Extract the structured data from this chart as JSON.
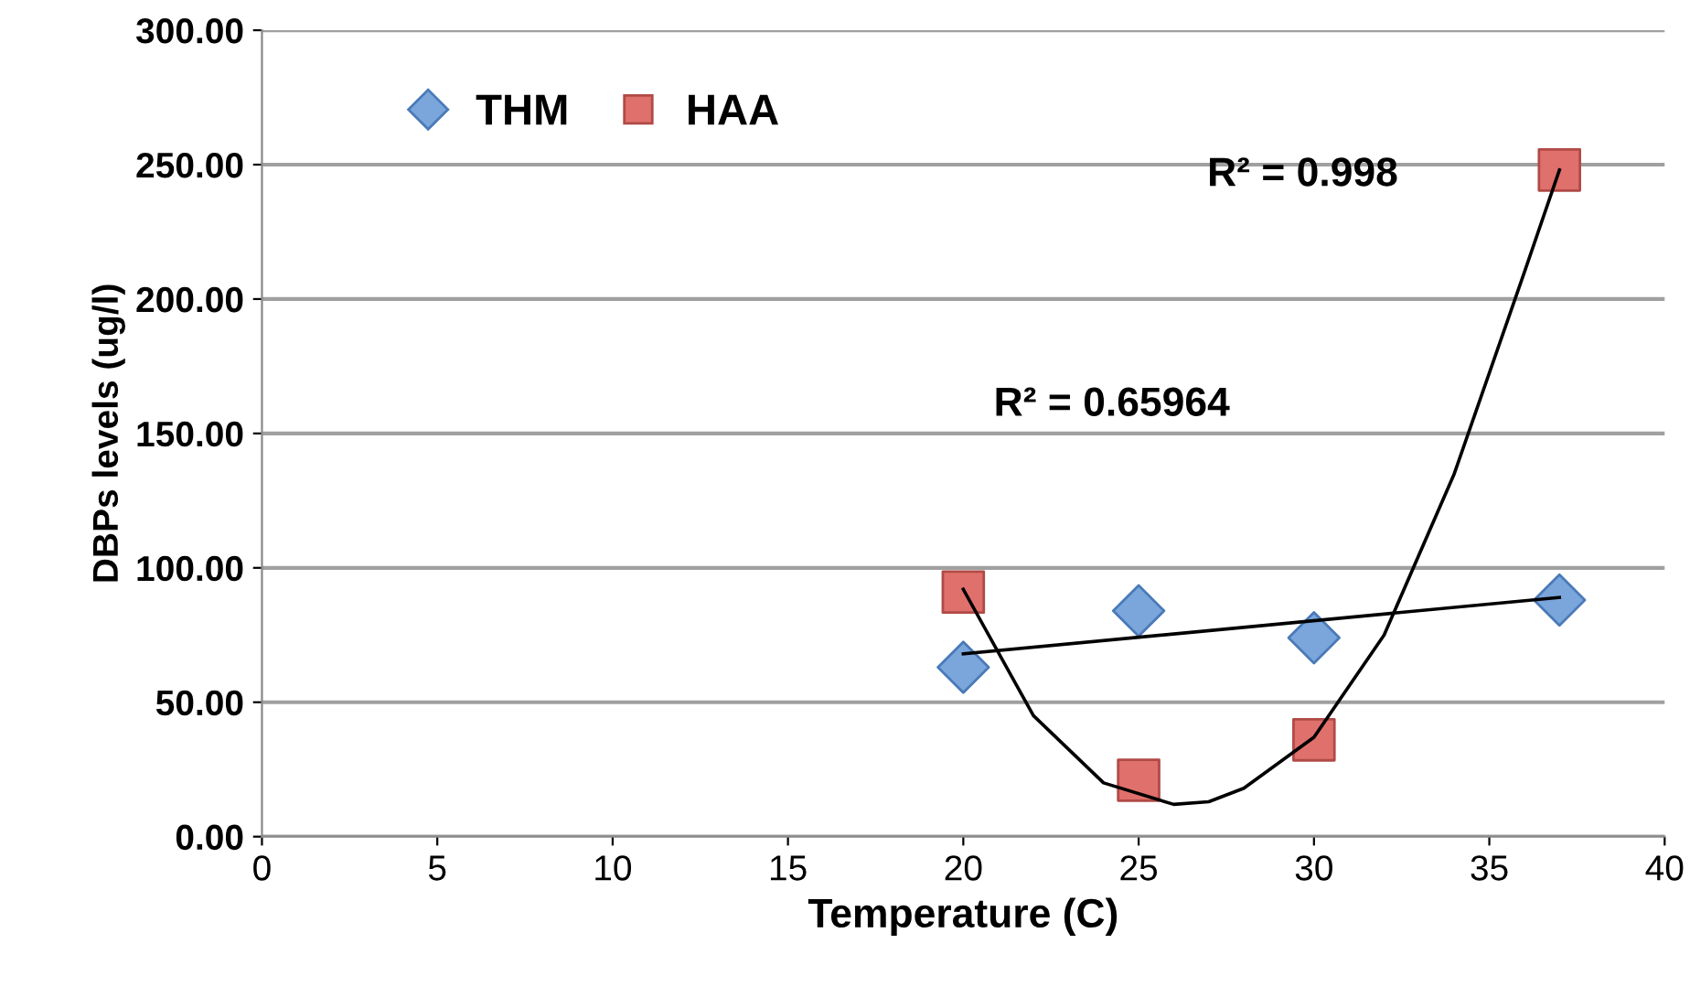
{
  "chart_data": {
    "type": "scatter",
    "xlabel": "Temperature (C)",
    "ylabel": "DBPs levels (ug/l)",
    "xlim": [
      0,
      40
    ],
    "xticks": [
      0,
      5,
      10,
      15,
      20,
      25,
      30,
      35,
      40
    ],
    "ylim": [
      0,
      300
    ],
    "yticks": [
      {
        "value": 0,
        "label": "0.00"
      },
      {
        "value": 50,
        "label": "50.00"
      },
      {
        "value": 100,
        "label": "100.00"
      },
      {
        "value": 150,
        "label": "150.00"
      },
      {
        "value": 200,
        "label": "200.00"
      },
      {
        "value": 250,
        "label": "250.00"
      },
      {
        "value": 300,
        "label": "300.00"
      }
    ],
    "grid": "y",
    "legend": "top left",
    "series": [
      {
        "name": "THM",
        "color": "#7aa6dc",
        "marker": "diamond",
        "x": [
          20,
          25,
          30,
          37
        ],
        "values": [
          63,
          84,
          74,
          88
        ]
      },
      {
        "name": "HAA",
        "color": "#e0706c",
        "marker": "square",
        "x": [
          20,
          25,
          30,
          37
        ],
        "values": [
          91,
          21,
          36,
          248
        ]
      },
      {
        "type": "line",
        "color": "#000000",
        "x": [
          20,
          37
        ],
        "values": [
          68,
          89
        ]
      },
      {
        "type": "line",
        "color": "#000000",
        "x": [
          20,
          22,
          24,
          26,
          27,
          28,
          30,
          32,
          34,
          36,
          37
        ],
        "values": [
          92,
          45,
          20,
          12,
          13,
          18,
          37,
          75,
          135,
          210,
          248
        ]
      }
    ],
    "annotations": [
      "R² = 0.998",
      "R² = 0.65964"
    ]
  }
}
